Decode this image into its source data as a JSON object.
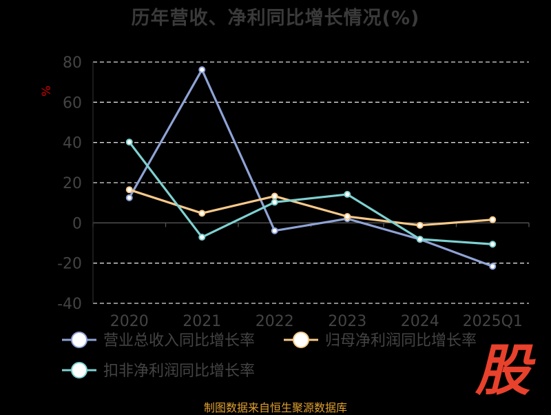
{
  "chart_data": {
    "type": "line",
    "title": "历年营收、净利同比增长情况(%)",
    "ylabel": "%",
    "xlabel": "",
    "categories": [
      "2020",
      "2021",
      "2022",
      "2023",
      "2024",
      "2025Q1"
    ],
    "ylim": [
      -40,
      80
    ],
    "yticks": [
      80,
      60,
      40,
      20,
      0,
      -20,
      -40
    ],
    "grid": true,
    "legend_position": "bottom",
    "series": [
      {
        "name": "营业总收入同比增长率",
        "color": "#8fa3d6",
        "values": [
          12.5,
          76.2,
          -3.9,
          2.1,
          -8.2,
          -21.6
        ]
      },
      {
        "name": "归母净利润同比增长率",
        "color": "#f7c98a",
        "values": [
          16.5,
          4.8,
          13.3,
          3.2,
          -1.2,
          1.6
        ]
      },
      {
        "name": "扣非净利润同比增长率",
        "color": "#7fd1d1",
        "values": [
          40.2,
          -7.1,
          10.3,
          14.2,
          -8.1,
          -10.6
        ]
      }
    ]
  },
  "footer": {
    "source": "制图数据来自恒生聚源数据库",
    "watermark": "股"
  }
}
